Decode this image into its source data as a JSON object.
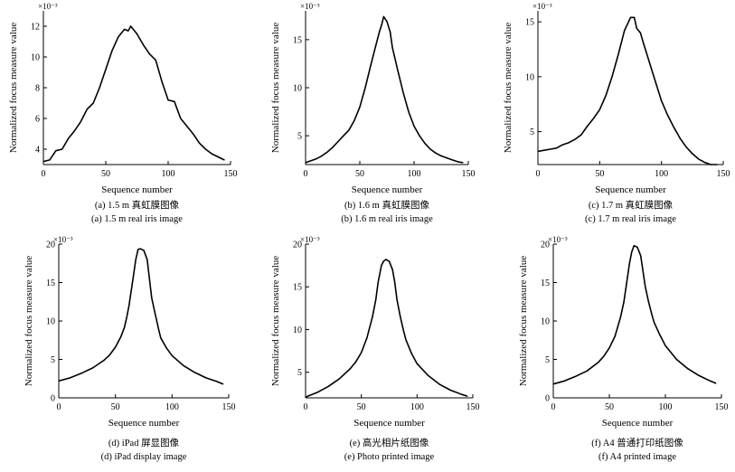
{
  "chart_data": [
    {
      "type": "line",
      "caption_zh": "(a) 1.5 m 真虹膜图像",
      "caption_en": "(a) 1.5 m real iris image",
      "xlabel": "Sequence number",
      "ylabel": "Normalized focus measure value",
      "y_multiplier": "×10⁻³",
      "xlim": [
        0,
        150
      ],
      "ylim": [
        3,
        13
      ],
      "xticks": [
        0,
        50,
        100,
        150
      ],
      "yticks": [
        4,
        6,
        8,
        10,
        12
      ],
      "series": [
        {
          "x": [
            0,
            5,
            10,
            15,
            20,
            25,
            30,
            35,
            40,
            45,
            50,
            55,
            60,
            65,
            68,
            70,
            72,
            75,
            80,
            85,
            90,
            95,
            100,
            105,
            110,
            115,
            120,
            125,
            130,
            135,
            140,
            145
          ],
          "values": [
            3.2,
            3.3,
            3.9,
            4.0,
            4.7,
            5.2,
            5.8,
            6.6,
            7.0,
            8.0,
            9.2,
            10.4,
            11.3,
            11.8,
            11.7,
            12.0,
            11.8,
            11.5,
            10.8,
            10.2,
            9.8,
            8.4,
            7.2,
            7.1,
            6.0,
            5.5,
            5.0,
            4.4,
            4.0,
            3.7,
            3.5,
            3.3
          ]
        }
      ]
    },
    {
      "type": "line",
      "caption_zh": "(b) 1.6 m 真虹膜图像",
      "caption_en": "(b) 1.6 m real iris image",
      "xlabel": "Sequence number",
      "ylabel": "Normalized focus measure value",
      "y_multiplier": "×10⁻³",
      "xlim": [
        0,
        150
      ],
      "ylim": [
        2,
        18
      ],
      "xticks": [
        0,
        50,
        100,
        150
      ],
      "yticks": [
        5,
        10,
        15
      ],
      "series": [
        {
          "x": [
            0,
            5,
            10,
            15,
            20,
            25,
            30,
            35,
            40,
            45,
            50,
            55,
            60,
            65,
            68,
            70,
            72,
            75,
            78,
            80,
            85,
            90,
            95,
            100,
            105,
            110,
            115,
            120,
            125,
            130,
            135,
            140,
            145
          ],
          "values": [
            2.2,
            2.4,
            2.6,
            2.9,
            3.3,
            3.8,
            4.4,
            5.0,
            5.6,
            6.6,
            8.0,
            10.0,
            12.3,
            14.5,
            15.8,
            16.5,
            17.4,
            16.9,
            15.8,
            14.2,
            11.8,
            9.5,
            7.5,
            6.0,
            5.0,
            4.2,
            3.6,
            3.2,
            2.9,
            2.7,
            2.5,
            2.3,
            2.2
          ]
        }
      ]
    },
    {
      "type": "line",
      "caption_zh": "(c) 1.7 m 真虹膜图像",
      "caption_en": "(c) 1.7 m real iris image",
      "xlabel": "Sequence number",
      "ylabel": "Normalized focus measure value",
      "y_multiplier": "×10⁻³",
      "xlim": [
        0,
        150
      ],
      "ylim": [
        2,
        16
      ],
      "xticks": [
        0,
        50,
        100,
        150
      ],
      "yticks": [
        5,
        10,
        15
      ],
      "series": [
        {
          "x": [
            0,
            5,
            10,
            15,
            20,
            25,
            30,
            35,
            40,
            45,
            50,
            55,
            60,
            65,
            70,
            75,
            78,
            80,
            83,
            85,
            90,
            95,
            100,
            105,
            110,
            115,
            120,
            125,
            130,
            135,
            140,
            145
          ],
          "values": [
            3.2,
            3.3,
            3.4,
            3.5,
            3.8,
            4.0,
            4.3,
            4.7,
            5.5,
            6.2,
            7.0,
            8.3,
            10.0,
            12.0,
            14.2,
            15.4,
            15.4,
            14.4,
            14.0,
            13.2,
            11.4,
            9.6,
            7.8,
            6.5,
            5.4,
            4.4,
            3.6,
            3.0,
            2.5,
            2.2,
            2.0,
            2.0
          ]
        }
      ]
    },
    {
      "type": "line",
      "caption_zh": "(d) iPad 屏显图像",
      "caption_en": "(d) iPad display image",
      "xlabel": "Sequence number",
      "ylabel": "Normalized focus measure value",
      "y_multiplier": "×10⁻³",
      "xlim": [
        0,
        150
      ],
      "ylim": [
        0,
        20
      ],
      "xticks": [
        0,
        50,
        100,
        150
      ],
      "yticks": [
        0,
        5,
        10,
        15,
        20
      ],
      "series": [
        {
          "x": [
            0,
            10,
            20,
            30,
            40,
            45,
            50,
            55,
            58,
            60,
            62,
            65,
            68,
            70,
            72,
            75,
            78,
            80,
            82,
            85,
            88,
            90,
            95,
            100,
            110,
            120,
            130,
            140,
            145
          ],
          "values": [
            2.2,
            2.6,
            3.2,
            3.9,
            4.9,
            5.6,
            6.6,
            8.0,
            9.2,
            10.5,
            12.0,
            15.0,
            18.0,
            19.3,
            19.4,
            19.2,
            18.0,
            15.5,
            13.0,
            11.0,
            9.0,
            7.8,
            6.5,
            5.5,
            4.2,
            3.3,
            2.6,
            2.1,
            1.8
          ]
        }
      ]
    },
    {
      "type": "line",
      "caption_zh": "(e) 高光相片纸图像",
      "caption_en": "(e) Photo printed image",
      "xlabel": "Sequence number",
      "ylabel": "Normalized focus measure value",
      "y_multiplier": "×10⁻³",
      "xlim": [
        0,
        150
      ],
      "ylim": [
        2,
        20
      ],
      "xticks": [
        0,
        50,
        100,
        150
      ],
      "yticks": [
        5,
        10,
        15,
        20
      ],
      "series": [
        {
          "x": [
            0,
            10,
            20,
            30,
            40,
            45,
            50,
            55,
            60,
            63,
            65,
            68,
            70,
            72,
            75,
            78,
            80,
            82,
            85,
            88,
            90,
            95,
            100,
            110,
            120,
            130,
            140,
            145
          ],
          "values": [
            2.1,
            2.6,
            3.3,
            4.2,
            5.4,
            6.2,
            7.3,
            9.0,
            11.5,
            13.5,
            15.5,
            17.5,
            18.0,
            18.2,
            18.0,
            17.0,
            15.5,
            13.5,
            11.5,
            9.8,
            8.8,
            7.2,
            6.0,
            4.6,
            3.6,
            2.9,
            2.4,
            2.2
          ]
        }
      ]
    },
    {
      "type": "line",
      "caption_zh": "(f) A4 普通打印纸图像",
      "caption_en": "(f) A4 printed image",
      "xlabel": "Sequence number",
      "ylabel": "Normalized focus measure value",
      "y_multiplier": "×10⁻³",
      "xlim": [
        0,
        150
      ],
      "ylim": [
        0,
        20
      ],
      "xticks": [
        0,
        50,
        100,
        150
      ],
      "yticks": [
        0,
        5,
        10,
        15,
        20
      ],
      "series": [
        {
          "x": [
            0,
            10,
            20,
            30,
            40,
            45,
            50,
            55,
            60,
            63,
            65,
            68,
            70,
            72,
            75,
            78,
            80,
            82,
            85,
            88,
            90,
            95,
            100,
            110,
            120,
            130,
            140,
            145
          ],
          "values": [
            1.8,
            2.2,
            2.8,
            3.5,
            4.6,
            5.4,
            6.5,
            8.0,
            10.5,
            12.5,
            14.5,
            17.5,
            19.0,
            19.8,
            19.6,
            18.5,
            16.5,
            14.5,
            12.5,
            10.8,
            9.8,
            8.2,
            6.8,
            5.0,
            3.8,
            2.9,
            2.2,
            1.9
          ]
        }
      ]
    }
  ]
}
